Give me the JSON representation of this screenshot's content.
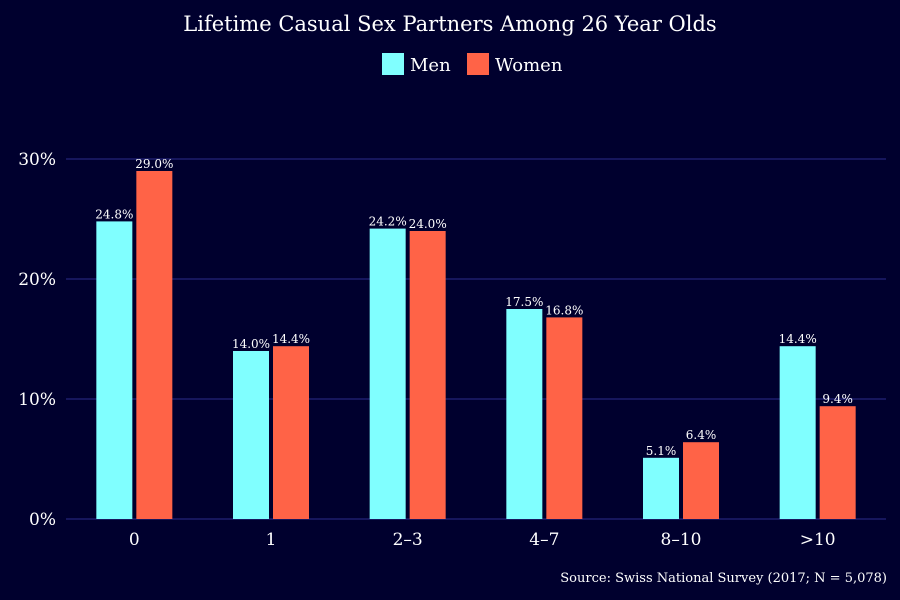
{
  "chart_data": {
    "type": "bar",
    "title": "Lifetime Casual Sex Partners Among 26 Year Olds",
    "categories": [
      "0",
      "1",
      "2–3",
      "4–7",
      "8–10",
      ">10"
    ],
    "series": [
      {
        "name": "Men",
        "color": "#80ffff",
        "values": [
          24.8,
          14.0,
          24.2,
          17.5,
          5.1,
          14.4
        ],
        "labels": [
          "24.8%",
          "14.0%",
          "24.2%",
          "17.5%",
          "5.1%",
          "14.4%"
        ]
      },
      {
        "name": "Women",
        "color": "#ff6347",
        "values": [
          29.0,
          14.4,
          24.0,
          16.8,
          6.4,
          9.4
        ],
        "labels": [
          "29.0%",
          "14.4%",
          "24.0%",
          "16.8%",
          "6.4%",
          "9.4%"
        ]
      }
    ],
    "yticks": [
      0,
      10,
      20,
      30
    ],
    "ytick_labels": [
      "0%",
      "10%",
      "20%",
      "30%"
    ],
    "ylim": [
      0,
      33
    ],
    "grid": true,
    "legend_position": "top-center",
    "source": "Source: Swiss National Survey (2017; N = 5,078)"
  },
  "colors": {
    "background": "#00002e",
    "grid": "#23237a"
  }
}
